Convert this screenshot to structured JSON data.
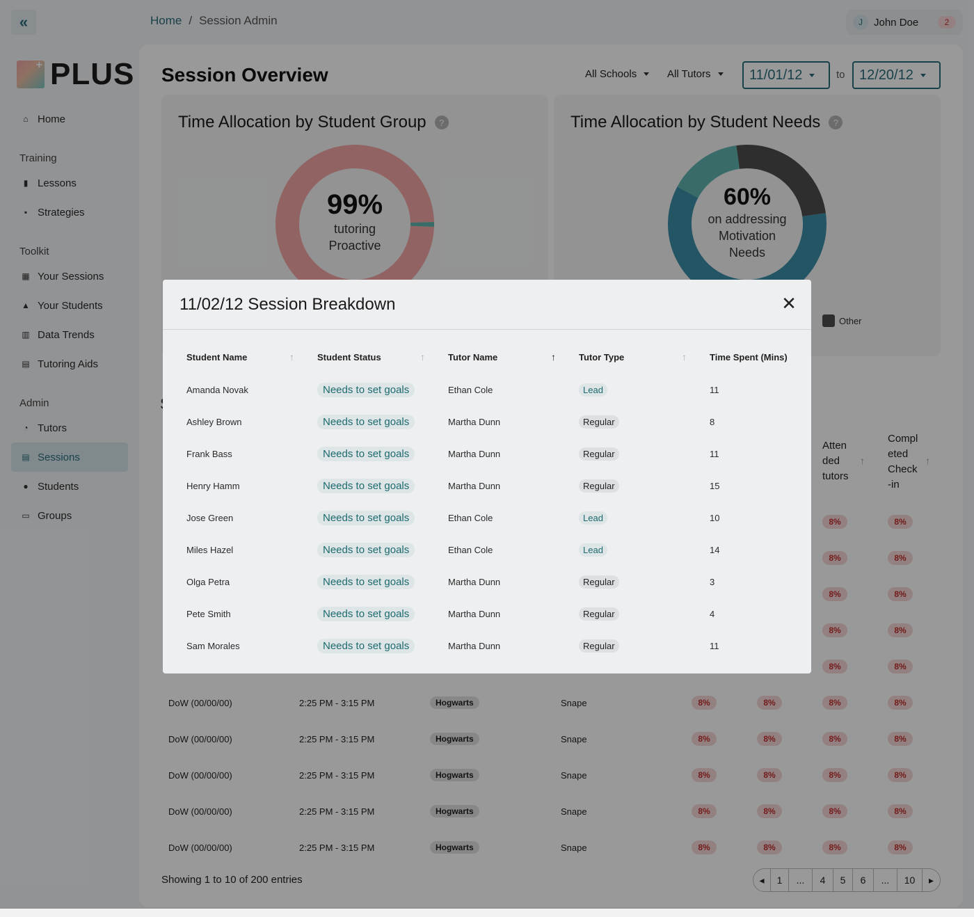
{
  "header": {
    "breadcrumb": [
      "Home",
      "Session Admin"
    ],
    "breadcrumb_sep": "/",
    "user": {
      "initial": "J",
      "name": "John Doe",
      "notifications": "2"
    }
  },
  "logo": {
    "text": "PLUS"
  },
  "sidebar": {
    "home": "Home",
    "sections": [
      {
        "title": "Training",
        "items": [
          {
            "label": "Lessons",
            "icon": "book-icon"
          },
          {
            "label": "Strategies",
            "icon": "clipboard-icon"
          }
        ]
      },
      {
        "title": "Toolkit",
        "items": [
          {
            "label": "Your Sessions",
            "icon": "calendar-icon"
          },
          {
            "label": "Your Students",
            "icon": "graduation-cap-icon"
          },
          {
            "label": "Data Trends",
            "icon": "bar-chart-icon"
          },
          {
            "label": "Tutoring Aids",
            "icon": "toolbox-icon"
          }
        ]
      },
      {
        "title": "Admin",
        "items": [
          {
            "label": "Tutors",
            "icon": "pie-chart-icon"
          },
          {
            "label": "Sessions",
            "icon": "calendar-list-icon",
            "active": true
          },
          {
            "label": "Students",
            "icon": "users-icon"
          },
          {
            "label": "Groups",
            "icon": "keyboard-icon"
          }
        ]
      }
    ]
  },
  "main": {
    "title": "Session Overview",
    "filters": {
      "schools": "All Schools",
      "tutors": "All Tutors",
      "date_from": "11/01/12",
      "date_to": "12/20/12",
      "to_label": "to"
    }
  },
  "charts": {
    "group": {
      "title": "Time Allocation by Student Group",
      "pct": "99%",
      "line1": "tutoring",
      "line2": "Proactive"
    },
    "needs": {
      "title": "Time Allocation by Student Needs",
      "pct": "60%",
      "line1": "on addressing",
      "line2": "Motivation",
      "line3": "Needs",
      "legend_other": "Other"
    }
  },
  "chart_data": [
    {
      "type": "pie",
      "slices": [
        {
          "value": 99,
          "color": "#f2a6a6"
        },
        {
          "value": 1,
          "color": "#5fb5ad"
        }
      ]
    },
    {
      "type": "pie",
      "slices": [
        {
          "value": 60,
          "color": "#3c8ea8"
        },
        {
          "value": 15,
          "color": "#5fb5ad"
        },
        {
          "value": 25,
          "color": "#4d4d4d"
        }
      ]
    }
  ],
  "table": {
    "partial_char": "S",
    "col_attended": [
      "Atten",
      "ded",
      "tutors"
    ],
    "col_completed": [
      "Compl",
      "eted",
      "Check",
      "-in"
    ],
    "pct_value": "8%",
    "rows": [
      {
        "date": "DoW (00/00/00)",
        "time": "2:25 PM - 3:15 PM",
        "school": "Hogwarts",
        "tutor": "Snape",
        "p1": "8%",
        "p2": "8%",
        "p3": "8%",
        "p4": "8%"
      },
      {
        "date": "DoW (00/00/00)",
        "time": "2:25 PM - 3:15 PM",
        "school": "Hogwarts",
        "tutor": "Snape",
        "p1": "8%",
        "p2": "8%",
        "p3": "8%",
        "p4": "8%"
      },
      {
        "date": "DoW (00/00/00)",
        "time": "2:25 PM - 3:15 PM",
        "school": "Hogwarts",
        "tutor": "Snape",
        "p1": "8%",
        "p2": "8%",
        "p3": "8%",
        "p4": "8%"
      },
      {
        "date": "DoW (00/00/00)",
        "time": "2:25 PM - 3:15 PM",
        "school": "Hogwarts",
        "tutor": "Snape",
        "p1": "8%",
        "p2": "8%",
        "p3": "8%",
        "p4": "8%"
      },
      {
        "date": "DoW (00/00/00)",
        "time": "2:25 PM - 3:15 PM",
        "school": "Hogwarts",
        "tutor": "Snape",
        "p1": "8%",
        "p2": "8%",
        "p3": "8%",
        "p4": "8%"
      }
    ],
    "showing": "Showing 1 to 10 of 200 entries",
    "pagination": [
      "1",
      "...",
      "4",
      "5",
      "6",
      "...",
      "10"
    ]
  },
  "modal": {
    "title": "11/02/12 Session Breakdown",
    "columns": [
      "Student Name",
      "Student Status",
      "Tutor Name",
      "Tutor Type",
      "Time Spent (Mins)"
    ],
    "rows": [
      {
        "student": "Amanda Novak",
        "status": "Needs to set goals",
        "tutor": "Ethan Cole",
        "type": "Lead",
        "mins": "11"
      },
      {
        "student": "Ashley Brown",
        "status": "Needs to set goals",
        "tutor": "Martha Dunn",
        "type": "Regular",
        "mins": "8"
      },
      {
        "student": "Frank Bass",
        "status": "Needs to set goals",
        "tutor": "Martha Dunn",
        "type": "Regular",
        "mins": "11"
      },
      {
        "student": "Henry Hamm",
        "status": "Needs to set goals",
        "tutor": "Martha Dunn",
        "type": "Regular",
        "mins": "15"
      },
      {
        "student": "Jose Green",
        "status": "Needs to set goals",
        "tutor": "Ethan Cole",
        "type": "Lead",
        "mins": "10"
      },
      {
        "student": "Miles Hazel",
        "status": "Needs to set goals",
        "tutor": "Ethan Cole",
        "type": "Lead",
        "mins": "14"
      },
      {
        "student": "Olga Petra",
        "status": "Needs to set goals",
        "tutor": "Martha Dunn",
        "type": "Regular",
        "mins": "3"
      },
      {
        "student": "Pete Smith",
        "status": "Needs to set goals",
        "tutor": "Martha Dunn",
        "type": "Regular",
        "mins": "4"
      },
      {
        "student": "Sam Morales",
        "status": "Needs to set goals",
        "tutor": "Martha Dunn",
        "type": "Regular",
        "mins": "11"
      }
    ]
  },
  "colors": {
    "accent": "#2b6d7a",
    "status_bg": "#dde5e6",
    "danger": "#c12d2d"
  }
}
